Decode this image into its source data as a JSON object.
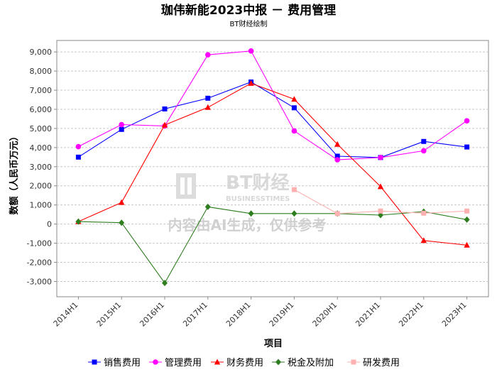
{
  "chart_data": {
    "type": "line",
    "title": "珈伟新能2023中报 － 费用管理",
    "subtitle": "BT财经绘制",
    "xlabel": "项目",
    "ylabel": "数额（人民币万元）",
    "ylim": [
      -3800,
      9600
    ],
    "yticks": [
      -3000,
      -2000,
      -1000,
      0,
      1000,
      2000,
      3000,
      4000,
      5000,
      6000,
      7000,
      8000,
      9000
    ],
    "yticklabels": [
      "-3,000",
      "-2,000",
      "-1,000",
      "0",
      "1,000",
      "2,000",
      "3,000",
      "4,000",
      "5,000",
      "6,000",
      "7,000",
      "8,000",
      "9,000"
    ],
    "categories": [
      "2014H1",
      "2015H1",
      "2016H1",
      "2017H1",
      "2018H1",
      "2019H1",
      "2020H1",
      "2021H1",
      "2022H1",
      "2023H1"
    ],
    "grid": true,
    "legend_position": "bottom",
    "series": [
      {
        "name": "销售费用",
        "color": "#0000ff",
        "marker": "square",
        "values": [
          3500,
          4950,
          6020,
          6580,
          7430,
          6080,
          3550,
          3480,
          4320,
          4030
        ]
      },
      {
        "name": "管理费用",
        "color": "#ff00ff",
        "marker": "circle",
        "values": [
          4050,
          5200,
          5130,
          8850,
          9050,
          4870,
          3360,
          3480,
          3830,
          5400
        ]
      },
      {
        "name": "财务费用",
        "color": "#ff0000",
        "marker": "triangle",
        "values": [
          130,
          1130,
          5180,
          6100,
          7360,
          6530,
          4170,
          1960,
          -860,
          -1100
        ]
      },
      {
        "name": "税金及附加",
        "color": "#2e7d1e",
        "marker": "diamond",
        "values": [
          130,
          70,
          -3080,
          900,
          550,
          550,
          550,
          470,
          650,
          230
        ]
      },
      {
        "name": "研发费用",
        "color": "#ffb0b0",
        "marker": "square",
        "values": [
          null,
          null,
          null,
          null,
          null,
          1800,
          550,
          680,
          570,
          680
        ]
      }
    ]
  },
  "watermark": {
    "brand": "BT财经",
    "brand_en": "BUSINESSTIMES",
    "notice": "内容由AI生成，仅供参考"
  }
}
